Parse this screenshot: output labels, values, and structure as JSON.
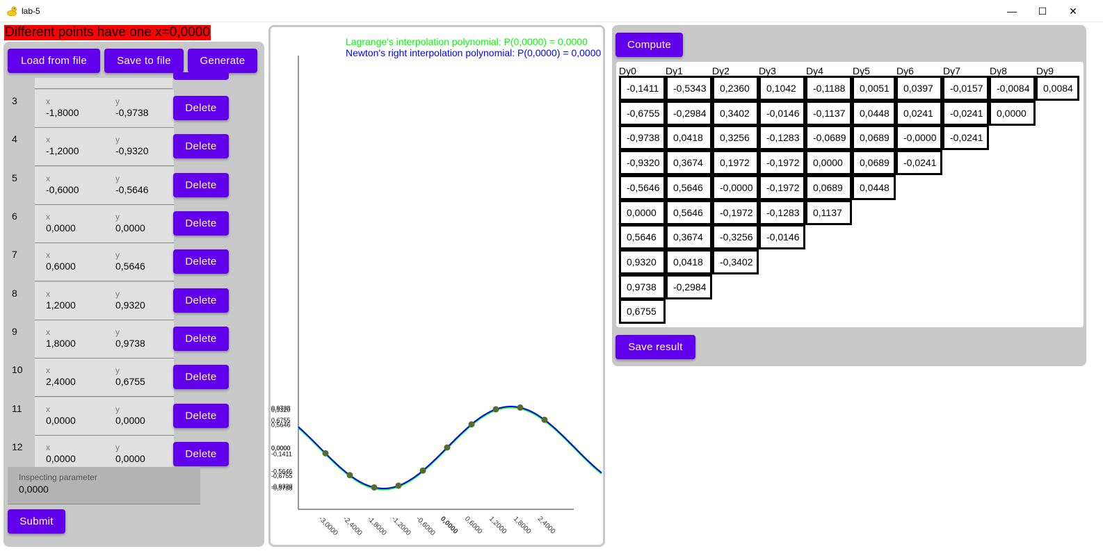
{
  "window": {
    "title": "lab-5",
    "minimize_glyph": "—",
    "maximize_glyph": "☐",
    "close_glyph": "✕"
  },
  "error_message": "Different points have one x=0,0000",
  "toolbar": {
    "load_label": "Load from file",
    "save_label": "Save to file",
    "generate_label": "Generate"
  },
  "points": [
    {
      "index": "3",
      "x": "-1,8000",
      "y": "-0,9738"
    },
    {
      "index": "4",
      "x": "-1,2000",
      "y": "-0,9320"
    },
    {
      "index": "5",
      "x": "-0,6000",
      "y": "-0,5646"
    },
    {
      "index": "6",
      "x": "0,0000",
      "y": "0,0000"
    },
    {
      "index": "7",
      "x": "0,6000",
      "y": "0,5646"
    },
    {
      "index": "8",
      "x": "1,2000",
      "y": "0,9320"
    },
    {
      "index": "9",
      "x": "1,8000",
      "y": "0,9738"
    },
    {
      "index": "10",
      "x": "2,4000",
      "y": "0,6755"
    },
    {
      "index": "11",
      "x": "0,0000",
      "y": "0,0000"
    },
    {
      "index": "12",
      "x": "0,0000",
      "y": "0,0000"
    }
  ],
  "point_field_labels": {
    "x": "x",
    "y": "y"
  },
  "delete_label": "Delete",
  "inspect": {
    "label": "Inspecting parameter",
    "value": "0,0000"
  },
  "submit_label": "Submit",
  "chart": {
    "lagrange_legend": "Lagrange's interpolation polynomial: P(0,0000) = 0,0000",
    "newton_legend": "Newton's right interpolation polynomial: P(0,0000) = 0,0000",
    "lagrange_color": "#00ff00",
    "newton_color": "#0000ff",
    "point_color": "#556b2f"
  },
  "chart_data": {
    "type": "line",
    "points": [
      [
        -3.0,
        -0.1411
      ],
      [
        -2.4,
        -0.6755
      ],
      [
        -1.8,
        -0.9738
      ],
      [
        -1.2,
        -0.932
      ],
      [
        -0.6,
        -0.5646
      ],
      [
        0.0,
        0.0
      ],
      [
        0.6,
        0.5646
      ],
      [
        1.2,
        0.932
      ],
      [
        1.8,
        0.9738
      ],
      [
        2.4,
        0.6755
      ]
    ],
    "x_ticks": [
      "-3,0000",
      "-2,4000",
      "-1,8000",
      "-1,2000",
      "-0,6000",
      "0,0000",
      "0,6000",
      "1,2000",
      "1,8000",
      "2,4000"
    ],
    "x_tick_values": [
      -3.0,
      -2.4,
      -1.8,
      -1.2,
      -0.6,
      0.0,
      0.6,
      1.2,
      1.8,
      2.4
    ],
    "y_ticks": [
      "0,9738",
      "0,9320",
      "0,6755",
      "0,5646",
      "0,0000",
      "0,0000",
      "-0,1411",
      "-0,5646",
      "-0,6755",
      "-0,9320",
      "-0,9738"
    ],
    "y_tick_values": [
      0.9738,
      0.932,
      0.6755,
      0.5646,
      0.0,
      0.0,
      -0.1411,
      -0.5646,
      -0.6755,
      -0.932,
      -0.9738
    ],
    "series": [
      {
        "name": "Lagrange's interpolation polynomial",
        "color": "#00ff00"
      },
      {
        "name": "Newton's right interpolation polynomial",
        "color": "#0000ff"
      }
    ]
  },
  "compute_label": "Compute",
  "save_result_label": "Save result",
  "diff_headers": [
    "Dy0",
    "Dy1",
    "Dy2",
    "Dy3",
    "Dy4",
    "Dy5",
    "Dy6",
    "Dy7",
    "Dy8",
    "Dy9"
  ],
  "diff_table": [
    [
      "-0,1411",
      "-0,5343",
      "0,2360",
      "0,1042",
      "-0,1188",
      "0,0051",
      "0,0397",
      "-0,0157",
      "-0,0084",
      "0,0084"
    ],
    [
      "-0,6755",
      "-0,2984",
      "0,3402",
      "-0,0146",
      "-0,1137",
      "0,0448",
      "0,0241",
      "-0,0241",
      "0,0000"
    ],
    [
      "-0,9738",
      "0,0418",
      "0,3256",
      "-0,1283",
      "-0,0689",
      "0,0689",
      "-0,0000",
      "-0,0241"
    ],
    [
      "-0,9320",
      "0,3674",
      "0,1972",
      "-0,1972",
      "0,0000",
      "0,0689",
      "-0,0241"
    ],
    [
      "-0,5646",
      "0,5646",
      "-0,0000",
      "-0,1972",
      "0,0689",
      "0,0448"
    ],
    [
      "0,0000",
      "0,5646",
      "-0,1972",
      "-0,1283",
      "0,1137"
    ],
    [
      "0,5646",
      "0,3674",
      "-0,3256",
      "-0,0146"
    ],
    [
      "0,9320",
      "0,0418",
      "-0,3402"
    ],
    [
      "0,9738",
      "-0,2984"
    ],
    [
      "0,6755"
    ]
  ]
}
